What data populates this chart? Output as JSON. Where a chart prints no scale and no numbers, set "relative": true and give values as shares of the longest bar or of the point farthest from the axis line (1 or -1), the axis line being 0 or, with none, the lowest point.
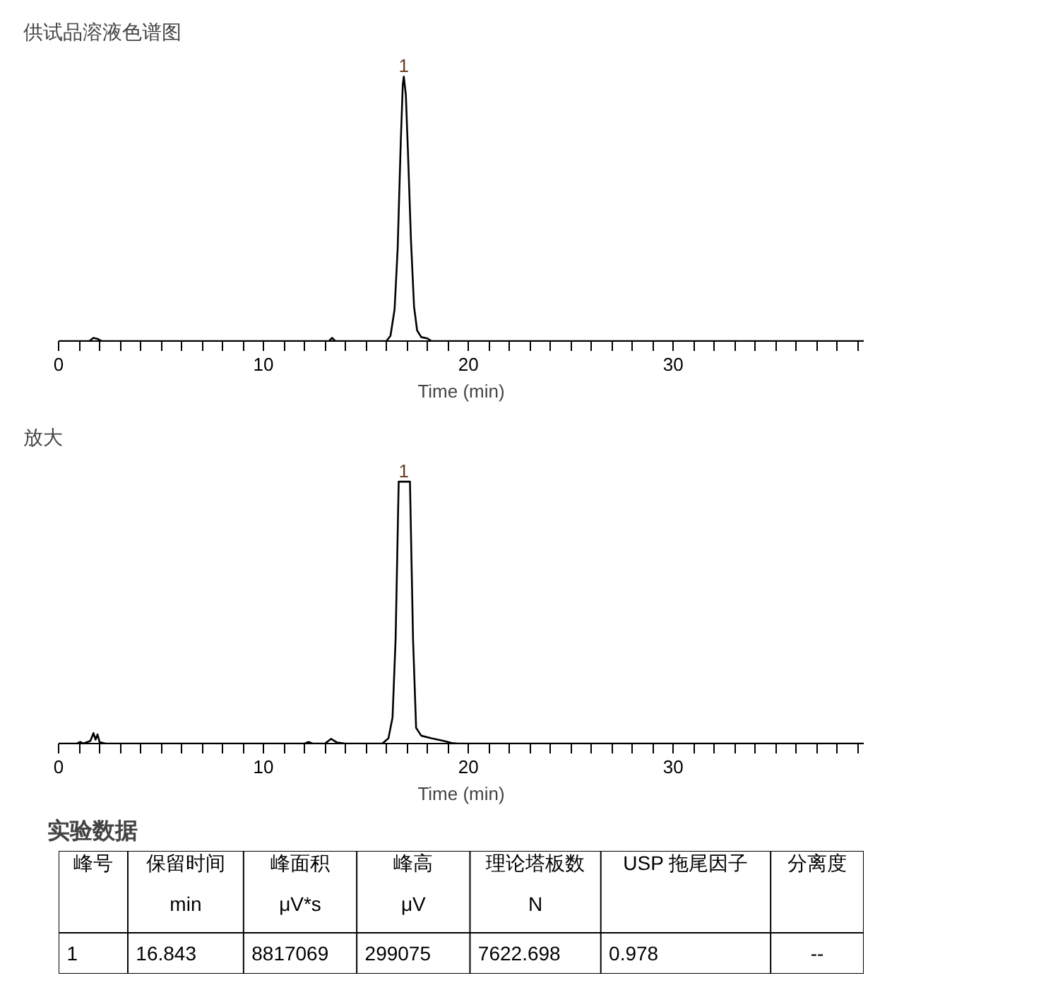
{
  "chart_data": [
    {
      "type": "line",
      "title": "供试品溶液色谱图",
      "xlabel": "Time (min)",
      "relative": true,
      "xlim": [
        0,
        39.3
      ],
      "xticks": [
        0,
        {
          "value": 1,
          "label": null
        },
        {
          "value": 2,
          "label": null
        },
        {
          "value": 3,
          "label": null
        },
        {
          "value": 4,
          "label": null
        },
        {
          "value": 5,
          "label": null
        },
        {
          "value": 6,
          "label": null
        },
        {
          "value": 7,
          "label": null
        },
        {
          "value": 8,
          "label": null
        },
        {
          "value": 9,
          "label": null
        },
        10,
        {
          "value": 11,
          "label": null
        },
        {
          "value": 12,
          "label": null
        },
        {
          "value": 13,
          "label": null
        },
        {
          "value": 14,
          "label": null
        },
        {
          "value": 15,
          "label": null
        },
        {
          "value": 16,
          "label": null
        },
        {
          "value": 17,
          "label": null
        },
        {
          "value": 18,
          "label": null
        },
        {
          "value": 19,
          "label": null
        },
        20,
        {
          "value": 21,
          "label": null
        },
        {
          "value": 22,
          "label": null
        },
        {
          "value": 23,
          "label": null
        },
        {
          "value": 24,
          "label": null
        },
        {
          "value": 25,
          "label": null
        },
        {
          "value": 26,
          "label": null
        },
        {
          "value": 27,
          "label": null
        },
        {
          "value": 28,
          "label": null
        },
        {
          "value": 29,
          "label": null
        },
        30,
        {
          "value": 31,
          "label": null
        },
        {
          "value": 32,
          "label": null
        },
        {
          "value": 33,
          "label": null
        },
        {
          "value": 34,
          "label": null
        },
        {
          "value": 35,
          "label": null
        },
        {
          "value": 36,
          "label": null
        },
        {
          "value": 37,
          "label": null
        },
        {
          "value": 38,
          "label": null
        },
        {
          "value": 39,
          "label": null
        }
      ],
      "x": [
        0,
        1.5,
        1.7,
        1.9,
        2.1,
        13.2,
        13.35,
        13.5,
        16.0,
        16.2,
        16.4,
        16.55,
        16.7,
        16.8,
        16.85,
        16.95,
        17.05,
        17.2,
        17.35,
        17.5,
        17.7,
        18.0,
        18.2,
        39.3
      ],
      "series": [
        {
          "color": "#000000",
          "values": [
            0,
            0,
            0.012,
            0.008,
            0,
            0,
            0.012,
            0,
            0,
            0.02,
            0.12,
            0.35,
            0.75,
            0.97,
            1,
            0.93,
            0.72,
            0.38,
            0.13,
            0.04,
            0.015,
            0.01,
            0,
            0
          ]
        }
      ],
      "annotations": [
        {
          "text": "1",
          "x": 16.85,
          "y": 1
        }
      ],
      "grid": false,
      "marker": "none",
      "line_style": "solid",
      "tick_labels": "x"
    },
    {
      "type": "line",
      "title": "放大",
      "xlabel": "Time (min)",
      "relative": true,
      "xlim": [
        0,
        39.3
      ],
      "xticks": [
        0,
        {
          "value": 1,
          "label": null
        },
        {
          "value": 2,
          "label": null
        },
        {
          "value": 3,
          "label": null
        },
        {
          "value": 4,
          "label": null
        },
        {
          "value": 5,
          "label": null
        },
        {
          "value": 6,
          "label": null
        },
        {
          "value": 7,
          "label": null
        },
        {
          "value": 8,
          "label": null
        },
        {
          "value": 9,
          "label": null
        },
        10,
        {
          "value": 11,
          "label": null
        },
        {
          "value": 12,
          "label": null
        },
        {
          "value": 13,
          "label": null
        },
        {
          "value": 14,
          "label": null
        },
        {
          "value": 15,
          "label": null
        },
        {
          "value": 16,
          "label": null
        },
        {
          "value": 17,
          "label": null
        },
        {
          "value": 18,
          "label": null
        },
        {
          "value": 19,
          "label": null
        },
        20,
        {
          "value": 21,
          "label": null
        },
        {
          "value": 22,
          "label": null
        },
        {
          "value": 23,
          "label": null
        },
        {
          "value": 24,
          "label": null
        },
        {
          "value": 25,
          "label": null
        },
        {
          "value": 26,
          "label": null
        },
        {
          "value": 27,
          "label": null
        },
        {
          "value": 28,
          "label": null
        },
        {
          "value": 29,
          "label": null
        },
        30,
        {
          "value": 31,
          "label": null
        },
        {
          "value": 32,
          "label": null
        },
        {
          "value": 33,
          "label": null
        },
        {
          "value": 34,
          "label": null
        },
        {
          "value": 35,
          "label": null
        },
        {
          "value": 36,
          "label": null
        },
        {
          "value": 37,
          "label": null
        },
        {
          "value": 38,
          "label": null
        },
        {
          "value": 39,
          "label": null
        }
      ],
      "x": [
        0,
        0.9,
        1.05,
        1.2,
        1.55,
        1.7,
        1.8,
        1.9,
        2.0,
        2.3,
        12.0,
        12.2,
        12.4,
        13.0,
        13.3,
        13.6,
        14.0,
        15.8,
        16.1,
        16.3,
        16.45,
        16.6,
        17.15,
        17.3,
        17.45,
        17.7,
        18.2,
        18.8,
        19.2,
        19.5,
        39.3
      ],
      "series": [
        {
          "color": "#000000",
          "values": [
            0,
            0,
            0.006,
            0,
            0.01,
            0.04,
            0.015,
            0.035,
            0.005,
            0,
            0,
            0.006,
            0,
            0,
            0.018,
            0.004,
            0,
            0,
            0.02,
            0.1,
            0.4,
            1,
            1,
            0.4,
            0.06,
            0.03,
            0.02,
            0.01,
            0.002,
            0,
            0
          ]
        }
      ],
      "annotations": [
        {
          "text": "1",
          "x": 16.85,
          "y": 1
        }
      ],
      "grid": false,
      "marker": "none",
      "line_style": "solid",
      "tick_labels": "x"
    },
    {
      "type": "other",
      "title": "实验数据",
      "categories": [
        "峰号",
        "保留时间\nmin",
        "峰面积\nμV*s",
        "峰高\nμV",
        "理论塔板数\nN",
        "USP 拖尾因子",
        "分离度"
      ],
      "annotations": [
        "1",
        "16.843",
        "8817069",
        "299075",
        "7622.698",
        "0.978",
        "--"
      ]
    }
  ]
}
